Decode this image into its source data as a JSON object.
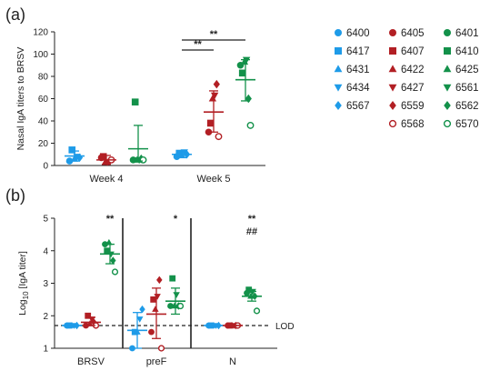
{
  "panel_a_label": "(a)",
  "panel_b_label": "(b)",
  "colors": {
    "blue": "#1e9be8",
    "red": "#b21f24",
    "green": "#13914a",
    "dark": "#222222"
  },
  "legend": [
    {
      "id": "6400",
      "color": "blue",
      "shape": "circle"
    },
    {
      "id": "6417",
      "color": "blue",
      "shape": "square"
    },
    {
      "id": "6431",
      "color": "blue",
      "shape": "triangle-up"
    },
    {
      "id": "6434",
      "color": "blue",
      "shape": "triangle-down"
    },
    {
      "id": "6567",
      "color": "blue",
      "shape": "diamond"
    },
    {
      "id": "6405",
      "color": "red",
      "shape": "circle"
    },
    {
      "id": "6407",
      "color": "red",
      "shape": "square"
    },
    {
      "id": "6422",
      "color": "red",
      "shape": "triangle-up"
    },
    {
      "id": "6427",
      "color": "red",
      "shape": "triangle-down"
    },
    {
      "id": "6559",
      "color": "red",
      "shape": "diamond"
    },
    {
      "id": "6568",
      "color": "red",
      "shape": "circle-open"
    },
    {
      "id": "6401",
      "color": "green",
      "shape": "circle"
    },
    {
      "id": "6410",
      "color": "green",
      "shape": "square"
    },
    {
      "id": "6425",
      "color": "green",
      "shape": "triangle-up"
    },
    {
      "id": "6561",
      "color": "green",
      "shape": "triangle-down"
    },
    {
      "id": "6562",
      "color": "green",
      "shape": "diamond"
    },
    {
      "id": "6570",
      "color": "green",
      "shape": "circle-open"
    }
  ],
  "chart_data": [
    {
      "type": "scatter",
      "panel": "(a)",
      "ylabel": "Nasal IgA titers to BRSV",
      "ylim": [
        0,
        120
      ],
      "yticks": [
        0,
        20,
        40,
        60,
        80,
        100,
        120
      ],
      "categories": [
        "Week 4",
        "Week 5"
      ],
      "groups": [
        {
          "category": "Week 4",
          "color": "blue",
          "mean": 8.5,
          "err": [
            4,
            13
          ],
          "points": [
            {
              "shape": "circle",
              "y": 4
            },
            {
              "shape": "square",
              "y": 14
            },
            {
              "shape": "triangle-up",
              "y": 6
            },
            {
              "shape": "triangle-down",
              "y": 8
            },
            {
              "shape": "diamond",
              "y": 7
            }
          ]
        },
        {
          "category": "Week 4",
          "color": "red",
          "mean": 5,
          "err": [
            1,
            9
          ],
          "points": [
            {
              "shape": "circle",
              "y": 7
            },
            {
              "shape": "square",
              "y": 8
            },
            {
              "shape": "triangle-up",
              "y": 3
            },
            {
              "shape": "triangle-down",
              "y": 3
            },
            {
              "shape": "diamond",
              "y": 4
            },
            {
              "shape": "circle-open",
              "y": 5
            }
          ]
        },
        {
          "category": "Week 4",
          "color": "green",
          "mean": 15,
          "err": [
            4,
            36
          ],
          "points": [
            {
              "shape": "circle",
              "y": 5
            },
            {
              "shape": "square",
              "y": 57
            },
            {
              "shape": "triangle-up",
              "y": 5
            },
            {
              "shape": "triangle-down",
              "y": 5
            },
            {
              "shape": "diamond",
              "y": 6
            },
            {
              "shape": "circle-open",
              "y": 5
            }
          ]
        },
        {
          "category": "Week 5",
          "color": "blue",
          "mean": 10,
          "err": [
            7,
            13
          ],
          "points": [
            {
              "shape": "circle",
              "y": 8
            },
            {
              "shape": "square",
              "y": 11
            },
            {
              "shape": "triangle-up",
              "y": 9
            },
            {
              "shape": "triangle-down",
              "y": 12
            },
            {
              "shape": "diamond",
              "y": 10
            }
          ]
        },
        {
          "category": "Week 5",
          "color": "red",
          "mean": 48,
          "err": [
            30,
            67
          ],
          "points": [
            {
              "shape": "circle",
              "y": 30
            },
            {
              "shape": "square",
              "y": 38
            },
            {
              "shape": "triangle-up",
              "y": 60
            },
            {
              "shape": "triangle-down",
              "y": 63
            },
            {
              "shape": "diamond",
              "y": 73
            },
            {
              "shape": "circle-open",
              "y": 26
            }
          ]
        },
        {
          "category": "Week 5",
          "color": "green",
          "mean": 77,
          "err": [
            58,
            95
          ],
          "points": [
            {
              "shape": "circle",
              "y": 90
            },
            {
              "shape": "square",
              "y": 83
            },
            {
              "shape": "triangle-up",
              "y": 93
            },
            {
              "shape": "triangle-down",
              "y": 95
            },
            {
              "shape": "diamond",
              "y": 60
            },
            {
              "shape": "circle-open",
              "y": 36
            }
          ]
        }
      ],
      "significance": [
        {
          "label": "**",
          "from": "Week 5 blue",
          "to": "Week 5 red"
        },
        {
          "label": "**",
          "from": "Week 5 blue",
          "to": "Week 5 green"
        }
      ]
    },
    {
      "type": "scatter",
      "panel": "(b)",
      "ylabel_prefix": "Log",
      "ylabel_sub": "10",
      "ylabel_rest": " [IgA titer]",
      "ylim": [
        1,
        5
      ],
      "yticks": [
        1,
        2,
        3,
        4,
        5
      ],
      "categories": [
        "BRSV",
        "preF",
        "N"
      ],
      "lod": 1.7,
      "lod_label": "LOD",
      "annotations": [
        {
          "category": "BRSV",
          "text": "**"
        },
        {
          "category": "preF",
          "text": "*"
        },
        {
          "category": "N",
          "text": "**"
        },
        {
          "category": "N",
          "text": "##"
        }
      ],
      "groups": [
        {
          "category": "BRSV",
          "color": "blue",
          "mean": 1.7,
          "err": [
            1.7,
            1.7
          ],
          "points": [
            {
              "shape": "circle",
              "y": 1.7
            },
            {
              "shape": "square",
              "y": 1.7
            },
            {
              "shape": "triangle-up",
              "y": 1.7
            },
            {
              "shape": "triangle-down",
              "y": 1.7
            },
            {
              "shape": "diamond",
              "y": 1.7
            }
          ]
        },
        {
          "category": "BRSV",
          "color": "red",
          "mean": 1.8,
          "err": [
            1.7,
            1.95
          ],
          "points": [
            {
              "shape": "circle",
              "y": 1.7
            },
            {
              "shape": "square",
              "y": 2.0
            },
            {
              "shape": "triangle-up",
              "y": 1.75
            },
            {
              "shape": "triangle-down",
              "y": 1.9
            },
            {
              "shape": "diamond",
              "y": 1.8
            },
            {
              "shape": "circle-open",
              "y": 1.7
            }
          ]
        },
        {
          "category": "BRSV",
          "color": "green",
          "mean": 3.9,
          "err": [
            3.6,
            4.2
          ],
          "points": [
            {
              "shape": "circle",
              "y": 4.2
            },
            {
              "shape": "square",
              "y": 4.0
            },
            {
              "shape": "triangle-up",
              "y": 4.25
            },
            {
              "shape": "triangle-down",
              "y": 3.9
            },
            {
              "shape": "diamond",
              "y": 3.7
            },
            {
              "shape": "circle-open",
              "y": 3.35
            }
          ]
        },
        {
          "category": "preF",
          "color": "blue",
          "mean": 1.55,
          "err": [
            1.0,
            2.1
          ],
          "points": [
            {
              "shape": "circle",
              "y": 1.0
            },
            {
              "shape": "square",
              "y": 1.5
            },
            {
              "shape": "triangle-up",
              "y": 1.5
            },
            {
              "shape": "triangle-down",
              "y": 1.9
            },
            {
              "shape": "diamond",
              "y": 2.2
            }
          ]
        },
        {
          "category": "preF",
          "color": "red",
          "mean": 2.05,
          "err": [
            1.3,
            2.85
          ],
          "points": [
            {
              "shape": "circle",
              "y": 1.5
            },
            {
              "shape": "square",
              "y": 2.5
            },
            {
              "shape": "triangle-up",
              "y": 2.2
            },
            {
              "shape": "triangle-down",
              "y": 2.6
            },
            {
              "shape": "diamond",
              "y": 3.1
            },
            {
              "shape": "circle-open",
              "y": 1.0
            }
          ]
        },
        {
          "category": "preF",
          "color": "green",
          "mean": 2.45,
          "err": [
            2.05,
            2.85
          ],
          "points": [
            {
              "shape": "circle",
              "y": 2.3
            },
            {
              "shape": "square",
              "y": 3.15
            },
            {
              "shape": "triangle-up",
              "y": 2.3
            },
            {
              "shape": "triangle-down",
              "y": 2.65
            },
            {
              "shape": "diamond",
              "y": 2.3
            },
            {
              "shape": "circle-open",
              "y": 2.3
            }
          ]
        },
        {
          "category": "N",
          "color": "blue",
          "mean": 1.7,
          "err": [
            1.7,
            1.7
          ],
          "points": [
            {
              "shape": "circle",
              "y": 1.7
            },
            {
              "shape": "square",
              "y": 1.7
            },
            {
              "shape": "triangle-up",
              "y": 1.7
            },
            {
              "shape": "triangle-down",
              "y": 1.7
            },
            {
              "shape": "diamond",
              "y": 1.7
            }
          ]
        },
        {
          "category": "N",
          "color": "red",
          "mean": 1.7,
          "err": [
            1.7,
            1.7
          ],
          "points": [
            {
              "shape": "circle",
              "y": 1.7
            },
            {
              "shape": "square",
              "y": 1.7
            },
            {
              "shape": "triangle-up",
              "y": 1.7
            },
            {
              "shape": "triangle-down",
              "y": 1.7
            },
            {
              "shape": "diamond",
              "y": 1.7
            },
            {
              "shape": "circle-open",
              "y": 1.7
            }
          ]
        },
        {
          "category": "N",
          "color": "green",
          "mean": 2.6,
          "err": [
            2.45,
            2.75
          ],
          "points": [
            {
              "shape": "circle",
              "y": 2.7
            },
            {
              "shape": "square",
              "y": 2.8
            },
            {
              "shape": "triangle-up",
              "y": 2.6
            },
            {
              "shape": "triangle-down",
              "y": 2.75
            },
            {
              "shape": "diamond",
              "y": 2.6
            },
            {
              "shape": "circle-open",
              "y": 2.15
            }
          ]
        }
      ]
    }
  ]
}
